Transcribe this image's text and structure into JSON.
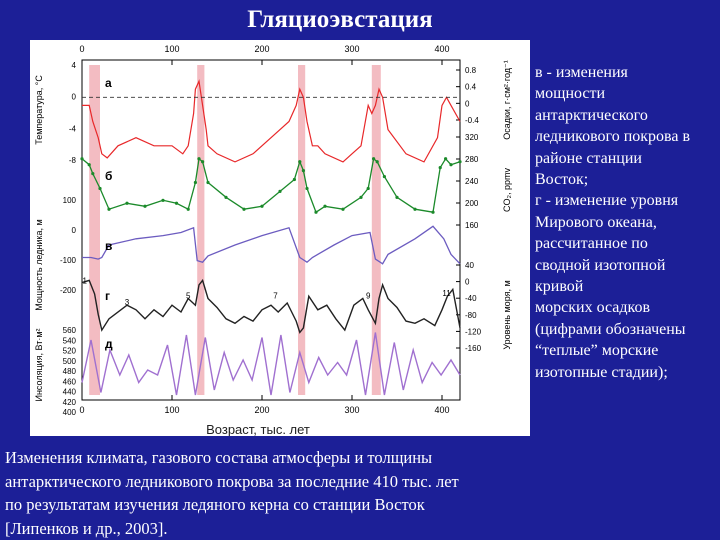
{
  "page": {
    "title": "Гляциоэвстация"
  },
  "side_text": [
    "в - изменения",
    "мощности",
    "антарктического",
    "ледникового покрова в",
    "районе станции",
    "Восток;",
    "г - изменение уровня",
    "Мирового океана,",
    "рассчитанное по",
    "сводной изотопной",
    "кривой",
    "морских осадков",
    "(цифрами обозначены",
    "“теплые” морские",
    "изотопные стадии);"
  ],
  "caption": [
    "Изменения климата, газового состава атмосферы и толщины",
    "антарктического ледникового покрова за последние 410 тыс. лет",
    "по результатам изучения ледяного керна со станции Восток",
    "[Липенков и др., 2003]."
  ],
  "colors": {
    "background": "#1c1f97",
    "temperature": "#e8282a",
    "co2": "#1b8a2a",
    "ice": "#6c5cc0",
    "sea": "#222222",
    "insolation": "#a070d0",
    "interglacial": "#f3bcc2"
  },
  "chart_data": {
    "type": "line",
    "xlabel": "Возраст, тыс. лет",
    "xlim": [
      0,
      420
    ],
    "x_ticks": [
      "0",
      "100",
      "200",
      "300",
      "400"
    ],
    "panel_letters": [
      "а",
      "б",
      "в",
      "г",
      "д"
    ],
    "interglacial_bands": [
      [
        8,
        20
      ],
      [
        128,
        136
      ],
      [
        240,
        248
      ],
      [
        322,
        332
      ]
    ],
    "stage_numbers": [
      {
        "label": "1",
        "x": 3,
        "y": -12
      },
      {
        "label": "3",
        "x": 50,
        "y": -60
      },
      {
        "label": "5",
        "x": 118,
        "y": -45
      },
      {
        "label": "7",
        "x": 215,
        "y": -45
      },
      {
        "label": "9",
        "x": 318,
        "y": -45
      },
      {
        "label": "11",
        "x": 405,
        "y": -40
      }
    ],
    "left_axes": [
      {
        "label": "Температура, °С",
        "ticks": [
          "4",
          "0",
          "-4",
          "-8"
        ]
      },
      {
        "label": "Мощность ледника, м",
        "ticks": [
          "100",
          "0",
          "-100",
          "-200"
        ]
      },
      {
        "label": "Инсоляция, Вт·м²",
        "ticks": [
          "560",
          "540",
          "520",
          "500",
          "480",
          "460",
          "440",
          "420",
          "400"
        ]
      }
    ],
    "right_axes": [
      {
        "label": "Осадки, г·см²·год⁻¹",
        "ticks": [
          "0.8",
          "0.4",
          "0",
          "-0.4"
        ]
      },
      {
        "label": "CO₂, ppmv",
        "ticks": [
          "320",
          "280",
          "240",
          "200",
          "160"
        ]
      },
      {
        "label": "Уровень моря, м",
        "ticks": [
          "40",
          "0",
          "-40",
          "-80",
          "-120",
          "-160"
        ]
      }
    ],
    "series": [
      {
        "key": "a",
        "unit": "°C",
        "x": [
          0,
          8,
          12,
          18,
          22,
          28,
          40,
          60,
          80,
          100,
          112,
          118,
          124,
          126,
          130,
          134,
          138,
          140,
          150,
          170,
          190,
          210,
          230,
          238,
          242,
          246,
          250,
          256,
          262,
          270,
          290,
          300,
          310,
          318,
          322,
          326,
          330,
          334,
          340,
          360,
          380,
          395,
          400,
          405,
          410,
          420
        ],
        "values": [
          -1,
          -1,
          -3,
          -5,
          -7,
          -7.5,
          -6,
          -5,
          -6,
          -6,
          -7,
          -6,
          -2,
          1,
          2,
          -1,
          -4,
          -6,
          -7,
          -8,
          -7,
          -5,
          -3,
          -1,
          1,
          0,
          -3,
          -6,
          -6,
          -7,
          -8,
          -7,
          -6,
          -1,
          -2,
          -1,
          1,
          0,
          -4,
          -7,
          -8,
          -5,
          -1,
          0,
          -1,
          -3
        ]
      },
      {
        "key": "b",
        "unit": "ppmv",
        "x": [
          0,
          8,
          12,
          20,
          30,
          50,
          70,
          90,
          105,
          118,
          126,
          130,
          134,
          140,
          160,
          180,
          200,
          220,
          236,
          242,
          246,
          250,
          260,
          270,
          290,
          310,
          318,
          324,
          328,
          336,
          350,
          370,
          390,
          398,
          404,
          410,
          420
        ],
        "values": [
          280,
          270,
          255,
          230,
          195,
          205,
          200,
          210,
          205,
          195,
          240,
          280,
          275,
          240,
          215,
          195,
          200,
          225,
          245,
          275,
          260,
          230,
          190,
          200,
          195,
          215,
          230,
          280,
          275,
          250,
          215,
          195,
          190,
          265,
          280,
          270,
          275
        ]
      },
      {
        "key": "c",
        "unit": "m",
        "x": [
          0,
          10,
          18,
          22,
          30,
          60,
          90,
          110,
          124,
          128,
          134,
          140,
          170,
          200,
          230,
          242,
          250,
          256,
          280,
          300,
          320,
          326,
          334,
          340,
          370,
          390,
          402,
          410,
          420
        ],
        "values": [
          -100,
          -100,
          -105,
          -100,
          -60,
          -40,
          -30,
          -20,
          -5,
          -110,
          -115,
          -95,
          -60,
          -30,
          -5,
          -100,
          -115,
          -100,
          -60,
          -30,
          -20,
          -105,
          -120,
          -90,
          -40,
          0,
          -40,
          -90,
          -120
        ]
      },
      {
        "key": "d",
        "unit": "m",
        "x": [
          0,
          8,
          14,
          18,
          22,
          30,
          50,
          60,
          70,
          80,
          90,
          100,
          110,
          118,
          126,
          130,
          134,
          140,
          150,
          160,
          170,
          180,
          190,
          200,
          210,
          218,
          228,
          238,
          242,
          246,
          252,
          262,
          272,
          282,
          292,
          302,
          312,
          318,
          326,
          330,
          334,
          340,
          350,
          360,
          370,
          380,
          392,
          400,
          406,
          412,
          420
        ],
        "values": [
          -10,
          -5,
          -35,
          -80,
          -115,
          -90,
          -60,
          -70,
          -90,
          -70,
          -85,
          -60,
          -75,
          -45,
          -60,
          -15,
          -5,
          -45,
          -65,
          -90,
          -100,
          -85,
          -95,
          -70,
          -60,
          -75,
          -55,
          -95,
          -120,
          -110,
          -40,
          -70,
          -60,
          -90,
          -115,
          -60,
          -45,
          -70,
          -100,
          -45,
          -15,
          -45,
          -65,
          -95,
          -100,
          -90,
          -105,
          -70,
          -40,
          -25,
          -110
        ]
      },
      {
        "key": "e",
        "unit": "W/m²",
        "x": [
          0,
          10,
          21,
          31,
          42,
          52,
          63,
          73,
          84,
          95,
          105,
          116,
          126,
          137,
          147,
          158,
          168,
          179,
          189,
          200,
          210,
          221,
          231,
          242,
          252,
          263,
          273,
          284,
          294,
          305,
          315,
          326,
          336,
          347,
          357,
          368,
          378,
          389,
          399,
          410,
          420
        ],
        "values": [
          455,
          540,
          435,
          520,
          470,
          510,
          455,
          480,
          470,
          530,
          430,
          550,
          430,
          545,
          440,
          515,
          460,
          500,
          460,
          545,
          430,
          550,
          435,
          515,
          455,
          505,
          470,
          495,
          470,
          540,
          430,
          555,
          430,
          535,
          440,
          520,
          455,
          495,
          470,
          500,
          470
        ]
      }
    ]
  }
}
